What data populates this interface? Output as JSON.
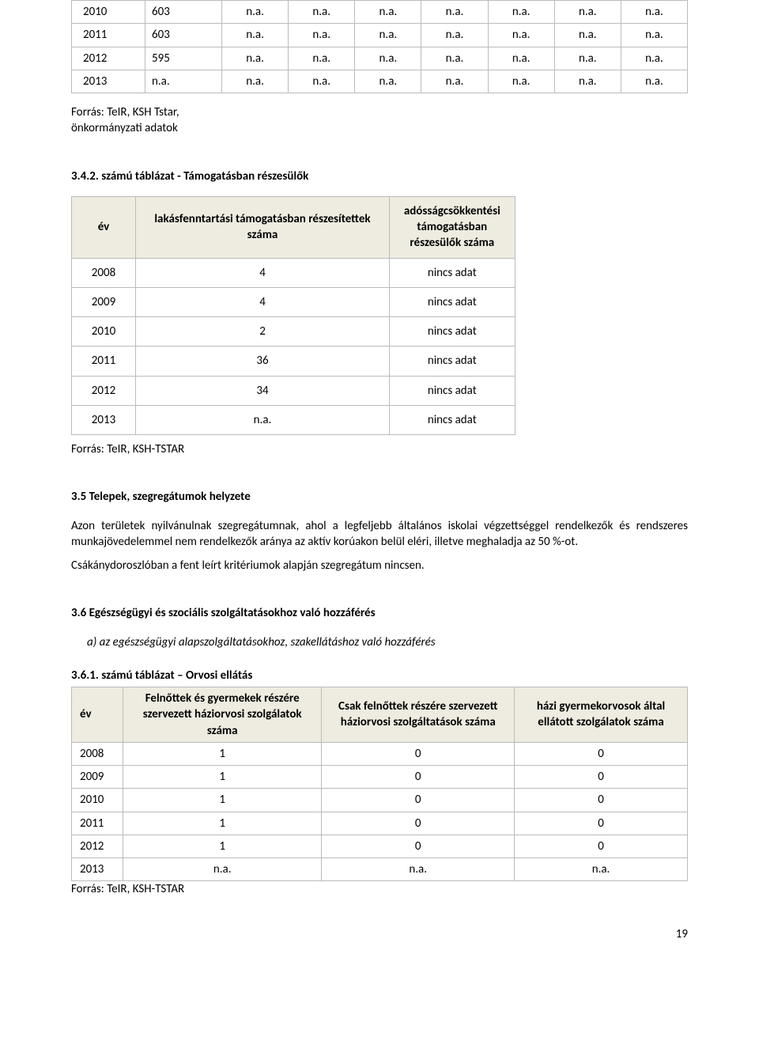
{
  "table1": {
    "rows": [
      [
        "2010",
        "603",
        "n.a.",
        "n.a.",
        "n.a.",
        "n.a.",
        "n.a.",
        "n.a.",
        "n.a."
      ],
      [
        "2011",
        "603",
        "n.a.",
        "n.a.",
        "n.a.",
        "n.a.",
        "n.a.",
        "n.a.",
        "n.a."
      ],
      [
        "2012",
        "595",
        "n.a.",
        "n.a.",
        "n.a.",
        "n.a.",
        "n.a.",
        "n.a.",
        "n.a."
      ],
      [
        "2013",
        "n.a.",
        "n.a.",
        "n.a.",
        "n.a.",
        "n.a.",
        "n.a.",
        "n.a.",
        "n.a."
      ]
    ]
  },
  "source1_line1": "Forrás: TeIR, KSH Tstar,",
  "source1_line2": "önkormányzati adatok",
  "t2_title": "3.4.2. számú táblázat - Támogatásban részesülők",
  "t2": {
    "head": [
      "év",
      "lakásfenntartási támogatásban részesítettek száma",
      "adósságcsökkentési támogatásban részesülők száma"
    ],
    "rows": [
      [
        "2008",
        "4",
        "nincs adat"
      ],
      [
        "2009",
        "4",
        "nincs adat"
      ],
      [
        "2010",
        "2",
        "nincs adat"
      ],
      [
        "2011",
        "36",
        "nincs adat"
      ],
      [
        "2012",
        "34",
        "nincs adat"
      ],
      [
        "2013",
        "n.a.",
        "nincs adat"
      ]
    ]
  },
  "source2": "Forrás: TeIR, KSH-TSTAR",
  "sec35_title": "3.5 Telepek, szegregátumok helyzete",
  "sec35_p1": "Azon területek nyilvánulnak szegregátumnak, ahol a legfeljebb általános iskolai végzettséggel rendelkezők és rendszeres munkajövedelemmel nem rendelkezők aránya az aktív korúakon belül eléri, illetve meghaladja az 50 %-ot.",
  "sec35_p2": "Csákánydoroszlóban a fent leírt kritériumok alapján szegregátum nincsen.",
  "sec36_title": "3.6 Egészségügyi és szociális szolgáltatásokhoz való hozzáférés",
  "sec36_a": "a)   az egészségügyi alapszolgáltatásokhoz, szakellátáshoz való hozzáférés",
  "t3_title": "3.6.1. számú táblázat – Orvosi ellátás",
  "t3": {
    "head": [
      "év",
      "Felnőttek és gyermekek részére szervezett háziorvosi szolgálatok száma",
      "Csak felnőttek részére szervezett háziorvosi szolgáltatások száma",
      "házi gyermekorvosok által ellátott szolgálatok száma"
    ],
    "rows": [
      [
        "2008",
        "1",
        "0",
        "0"
      ],
      [
        "2009",
        "1",
        "0",
        "0"
      ],
      [
        "2010",
        "1",
        "0",
        "0"
      ],
      [
        "2011",
        "1",
        "0",
        "0"
      ],
      [
        "2012",
        "1",
        "0",
        "0"
      ],
      [
        "2013",
        "n.a.",
        "n.a.",
        "n.a."
      ]
    ]
  },
  "source3": "Forrás: TeIR, KSH-TSTAR",
  "page_number": "19"
}
